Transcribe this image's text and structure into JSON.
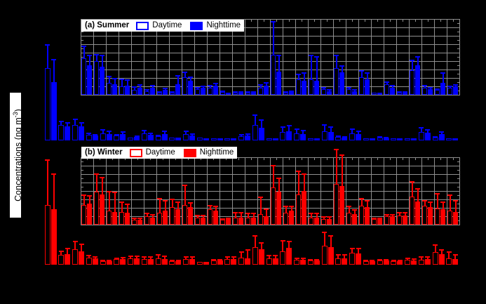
{
  "figure": {
    "y_axis_label_prefix": "Concentrations (ng m",
    "y_axis_label_sup": "-3",
    "y_axis_label_suffix": ")",
    "background_color": "#000000",
    "grid_color": "#8f8f8f",
    "label_background": "#ffffff"
  },
  "chart_data": [
    {
      "type": "bar",
      "panel_label": "(a) Summer",
      "legend": [
        "Daytime",
        "Nighttime"
      ],
      "legend_position": "top-left inset",
      "color": "#0000ff",
      "daytime_style": "open (outline only)",
      "nighttime_style": "filled",
      "grid": "on (inset only)",
      "units": "relative height, px; axis value labels not visible in image",
      "groups": 30,
      "main": {
        "day": [
          [
            103,
            137
          ],
          [
            22,
            28
          ],
          [
            22,
            31
          ],
          [
            8,
            11
          ],
          [
            10,
            16
          ],
          [
            7,
            9
          ],
          [
            4,
            5
          ],
          [
            10,
            15
          ],
          [
            6,
            8
          ],
          [
            4,
            5
          ],
          [
            9,
            14
          ],
          [
            4,
            5
          ],
          [
            3,
            4
          ],
          [
            2,
            3
          ],
          [
            6,
            9
          ],
          [
            22,
            37
          ],
          [
            3,
            4
          ],
          [
            12,
            20
          ],
          [
            10,
            17
          ],
          [
            3,
            4
          ],
          [
            13,
            23
          ],
          [
            5,
            7
          ],
          [
            10,
            17
          ],
          [
            3,
            4
          ],
          [
            4,
            6
          ],
          [
            3,
            4
          ],
          [
            3,
            4
          ],
          [
            12,
            19
          ],
          [
            4,
            6
          ],
          [
            3,
            4
          ]
        ],
        "night": [
          [
            83,
            116
          ],
          [
            20,
            26
          ],
          [
            20,
            26
          ],
          [
            7,
            9
          ],
          [
            9,
            14
          ],
          [
            9,
            13
          ],
          [
            5,
            7
          ],
          [
            8,
            11
          ],
          [
            9,
            14
          ],
          [
            4,
            5
          ],
          [
            7,
            10
          ],
          [
            3,
            4
          ],
          [
            3,
            4
          ],
          [
            3,
            4
          ],
          [
            7,
            10
          ],
          [
            18,
            30
          ],
          [
            3,
            4
          ],
          [
            13,
            22
          ],
          [
            9,
            15
          ],
          [
            3,
            4
          ],
          [
            12,
            20
          ],
          [
            4,
            6
          ],
          [
            9,
            14
          ],
          [
            3,
            4
          ],
          [
            3,
            5
          ],
          [
            3,
            4
          ],
          [
            3,
            4
          ],
          [
            11,
            16
          ],
          [
            9,
            13
          ],
          [
            3,
            4
          ]
        ]
      },
      "inset": {
        "day": [
          [
            52,
            70
          ],
          [
            48,
            58
          ],
          [
            17,
            27
          ],
          [
            12,
            23
          ],
          [
            7,
            12
          ],
          [
            5,
            8
          ],
          [
            3,
            5
          ],
          [
            3,
            5
          ],
          [
            25,
            33
          ],
          [
            8,
            11
          ],
          [
            10,
            14
          ],
          [
            4,
            6
          ],
          [
            3,
            5
          ],
          [
            3,
            5
          ],
          [
            10,
            15
          ],
          [
            57,
            105
          ],
          [
            3,
            5
          ],
          [
            22,
            30
          ],
          [
            22,
            57
          ],
          [
            8,
            11
          ],
          [
            38,
            57
          ],
          [
            8,
            11
          ],
          [
            25,
            35
          ],
          [
            3,
            4
          ],
          [
            15,
            19
          ],
          [
            3,
            5
          ],
          [
            35,
            50
          ],
          [
            10,
            14
          ],
          [
            7,
            9
          ],
          [
            10,
            13
          ]
        ],
        "night": [
          [
            42,
            57
          ],
          [
            40,
            57
          ],
          [
            15,
            24
          ],
          [
            13,
            22
          ],
          [
            10,
            15
          ],
          [
            10,
            14
          ],
          [
            7,
            10
          ],
          [
            15,
            28
          ],
          [
            20,
            26
          ],
          [
            10,
            13
          ],
          [
            13,
            17
          ],
          [
            2,
            3
          ],
          [
            3,
            5
          ],
          [
            3,
            5
          ],
          [
            13,
            18
          ],
          [
            33,
            57
          ],
          [
            4,
            6
          ],
          [
            20,
            32
          ],
          [
            20,
            55
          ],
          [
            5,
            8
          ],
          [
            32,
            42
          ],
          [
            5,
            8
          ],
          [
            22,
            32
          ],
          [
            3,
            4
          ],
          [
            10,
            14
          ],
          [
            3,
            5
          ],
          [
            42,
            55
          ],
          [
            8,
            11
          ],
          [
            17,
            32
          ],
          [
            12,
            15
          ]
        ]
      }
    },
    {
      "type": "bar",
      "panel_label": "(b) Winter",
      "legend": [
        "Daytime",
        "Nighttime"
      ],
      "legend_position": "top-left inset",
      "color": "#ff0000",
      "daytime_style": "open (outline only)",
      "nighttime_style": "filled",
      "grid": "on (inset only)",
      "units": "relative height, px; axis value labels not visible in image",
      "groups": 30,
      "main": {
        "day": [
          [
            85,
            150
          ],
          [
            14,
            20
          ],
          [
            22,
            34
          ],
          [
            10,
            14
          ],
          [
            5,
            7
          ],
          [
            8,
            10
          ],
          [
            9,
            13
          ],
          [
            8,
            12
          ],
          [
            9,
            15
          ],
          [
            5,
            7
          ],
          [
            8,
            12
          ],
          [
            4,
            5
          ],
          [
            6,
            8
          ],
          [
            8,
            12
          ],
          [
            10,
            19
          ],
          [
            25,
            42
          ],
          [
            9,
            14
          ],
          [
            19,
            35
          ],
          [
            7,
            10
          ],
          [
            6,
            8
          ],
          [
            27,
            47
          ],
          [
            9,
            15
          ],
          [
            17,
            24
          ],
          [
            5,
            7
          ],
          [
            6,
            8
          ],
          [
            5,
            7
          ],
          [
            7,
            10
          ],
          [
            7,
            12
          ],
          [
            18,
            29
          ],
          [
            9,
            19
          ]
        ],
        "night": [
          [
            79,
            130
          ],
          [
            15,
            24
          ],
          [
            19,
            30
          ],
          [
            9,
            12
          ],
          [
            5,
            7
          ],
          [
            8,
            11
          ],
          [
            9,
            13
          ],
          [
            8,
            12
          ],
          [
            8,
            13
          ],
          [
            5,
            7
          ],
          [
            8,
            12
          ],
          [
            4,
            5
          ],
          [
            6,
            8
          ],
          [
            8,
            12
          ],
          [
            9,
            22
          ],
          [
            22,
            32
          ],
          [
            9,
            14
          ],
          [
            24,
            34
          ],
          [
            7,
            10
          ],
          [
            6,
            8
          ],
          [
            25,
            42
          ],
          [
            9,
            15
          ],
          [
            16,
            24
          ],
          [
            5,
            7
          ],
          [
            6,
            8
          ],
          [
            5,
            7
          ],
          [
            6,
            9
          ],
          [
            8,
            12
          ],
          [
            15,
            22
          ],
          [
            8,
            15
          ]
        ]
      },
      "inset": {
        "day": [
          [
            28,
            43
          ],
          [
            47,
            73
          ],
          [
            20,
            48
          ],
          [
            18,
            33
          ],
          [
            7,
            10
          ],
          [
            12,
            17
          ],
          [
            17,
            38
          ],
          [
            25,
            37
          ],
          [
            28,
            57
          ],
          [
            10,
            14
          ],
          [
            22,
            28
          ],
          [
            7,
            9
          ],
          [
            10,
            18
          ],
          [
            10,
            17
          ],
          [
            15,
            40
          ],
          [
            53,
            85
          ],
          [
            17,
            27
          ],
          [
            43,
            77
          ],
          [
            10,
            17
          ],
          [
            8,
            12
          ],
          [
            58,
            108
          ],
          [
            17,
            27
          ],
          [
            27,
            38
          ],
          [
            8,
            10
          ],
          [
            12,
            15
          ],
          [
            13,
            18
          ],
          [
            40,
            62
          ],
          [
            27,
            35
          ],
          [
            23,
            45
          ],
          [
            20,
            43
          ]
        ],
        "night": [
          [
            30,
            42
          ],
          [
            43,
            68
          ],
          [
            18,
            47
          ],
          [
            17,
            30
          ],
          [
            7,
            10
          ],
          [
            10,
            15
          ],
          [
            20,
            35
          ],
          [
            22,
            33
          ],
          [
            25,
            32
          ],
          [
            10,
            14
          ],
          [
            20,
            27
          ],
          [
            8,
            10
          ],
          [
            10,
            18
          ],
          [
            10,
            17
          ],
          [
            12,
            23
          ],
          [
            47,
            67
          ],
          [
            20,
            27
          ],
          [
            48,
            73
          ],
          [
            10,
            17
          ],
          [
            8,
            12
          ],
          [
            55,
            100
          ],
          [
            15,
            22
          ],
          [
            25,
            35
          ],
          [
            8,
            10
          ],
          [
            12,
            15
          ],
          [
            13,
            18
          ],
          [
            33,
            52
          ],
          [
            25,
            33
          ],
          [
            22,
            33
          ],
          [
            18,
            35
          ]
        ]
      }
    }
  ]
}
